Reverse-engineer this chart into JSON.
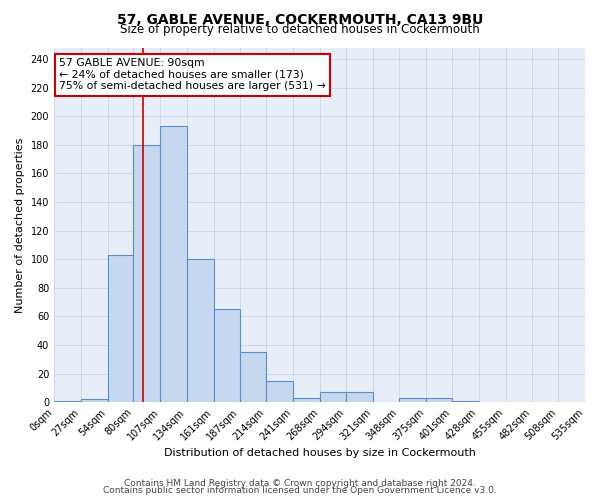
{
  "title1": "57, GABLE AVENUE, COCKERMOUTH, CA13 9BU",
  "title2": "Size of property relative to detached houses in Cockermouth",
  "xlabel": "Distribution of detached houses by size in Cockermouth",
  "ylabel": "Number of detached properties",
  "bin_edges": [
    0,
    27,
    54,
    80,
    107,
    134,
    161,
    187,
    214,
    241,
    268,
    294,
    321,
    348,
    375,
    401,
    428,
    455,
    482,
    508,
    535
  ],
  "bar_heights": [
    1,
    2,
    103,
    180,
    193,
    100,
    65,
    35,
    15,
    3,
    7,
    7,
    0,
    3,
    3,
    1,
    0,
    0,
    0,
    0
  ],
  "bar_color": "#c5d8f0",
  "bar_edge_color": "#5b8ec4",
  "property_size": 90,
  "property_line_color": "#cc0000",
  "annotation_line1": "57 GABLE AVENUE: 90sqm",
  "annotation_line2": "← 24% of detached houses are smaller (173)",
  "annotation_line3": "75% of semi-detached houses are larger (531) →",
  "annotation_box_color": "#ffffff",
  "annotation_box_edge": "#cc0000",
  "ylim": [
    0,
    248
  ],
  "yticks": [
    0,
    20,
    40,
    60,
    80,
    100,
    120,
    140,
    160,
    180,
    200,
    220,
    240
  ],
  "grid_color": "#c8d4e8",
  "background_color": "#e8eef8",
  "footer1": "Contains HM Land Registry data © Crown copyright and database right 2024.",
  "footer2": "Contains public sector information licensed under the Open Government Licence v3.0.",
  "title1_fontsize": 10,
  "title2_fontsize": 8.5,
  "xlabel_fontsize": 8,
  "ylabel_fontsize": 8,
  "tick_fontsize": 7,
  "footer_fontsize": 6.5,
  "annot_fontsize": 7.8
}
